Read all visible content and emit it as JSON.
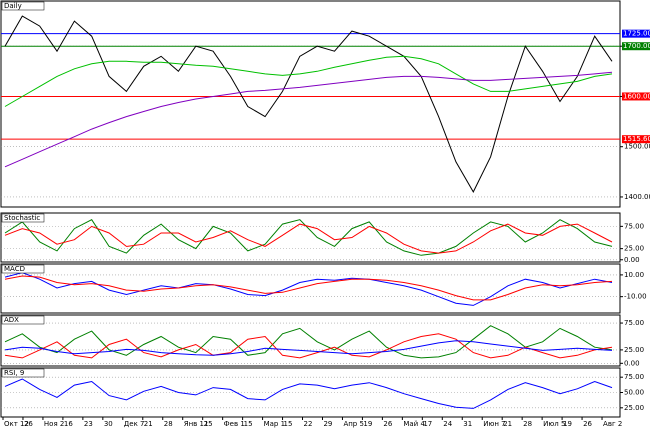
{
  "chart_data": [
    {
      "type": "line",
      "title": "Daily",
      "series": [
        {
          "color": "#000000",
          "values": [
            1700,
            1760,
            1740,
            1690,
            1750,
            1720,
            1640,
            1610,
            1660,
            1680,
            1650,
            1700,
            1690,
            1640,
            1580,
            1560,
            1610,
            1680,
            1700,
            1690,
            1730,
            1720,
            1700,
            1680,
            1640,
            1560,
            1470,
            1410,
            1480,
            1600,
            1700,
            1650,
            1590,
            1640,
            1720,
            1670
          ]
        },
        {
          "color": "#00c000",
          "values": [
            1580,
            1600,
            1620,
            1640,
            1655,
            1665,
            1670,
            1670,
            1668,
            1668,
            1665,
            1662,
            1660,
            1655,
            1650,
            1645,
            1642,
            1645,
            1650,
            1658,
            1665,
            1672,
            1678,
            1680,
            1675,
            1665,
            1645,
            1625,
            1610,
            1610,
            1615,
            1620,
            1625,
            1630,
            1640,
            1645
          ]
        },
        {
          "color": "#8000c0",
          "values": [
            1460,
            1475,
            1490,
            1505,
            1520,
            1535,
            1548,
            1560,
            1570,
            1580,
            1588,
            1595,
            1600,
            1605,
            1610,
            1612,
            1615,
            1618,
            1622,
            1626,
            1630,
            1634,
            1638,
            1640,
            1640,
            1638,
            1635,
            1632,
            1632,
            1634,
            1636,
            1638,
            1640,
            1642,
            1645,
            1648
          ]
        }
      ],
      "ylim": [
        1380,
        1790
      ],
      "yticks": [
        {
          "value": 1400,
          "label": "1400.00"
        },
        {
          "value": 1500,
          "label": "1500.00"
        },
        {
          "value": 1600,
          "label": "1600.00"
        },
        {
          "value": 1700,
          "label": "1700.00"
        }
      ],
      "levels": [
        {
          "value": 1725,
          "label": "1725.00",
          "color": "#0000ff"
        },
        {
          "value": 1700,
          "label": "1700.00",
          "color": "#008000"
        },
        {
          "value": 1600,
          "label": "1600.00",
          "color": "#ff0000"
        },
        {
          "value": 1515,
          "label": "1515.60",
          "color": "#ff0000"
        }
      ],
      "grid": true
    },
    {
      "type": "line",
      "title": "Stochastic",
      "series": [
        {
          "color": "#008000",
          "values": [
            60,
            85,
            40,
            20,
            70,
            90,
            30,
            15,
            55,
            80,
            45,
            25,
            75,
            60,
            20,
            35,
            80,
            90,
            50,
            30,
            70,
            85,
            40,
            20,
            10,
            15,
            30,
            60,
            85,
            75,
            40,
            60,
            90,
            70,
            40,
            30
          ]
        },
        {
          "color": "#ff0000",
          "values": [
            55,
            70,
            60,
            35,
            45,
            75,
            60,
            30,
            35,
            60,
            60,
            40,
            50,
            65,
            45,
            30,
            55,
            80,
            70,
            45,
            50,
            75,
            60,
            35,
            20,
            15,
            20,
            40,
            65,
            80,
            60,
            55,
            75,
            80,
            60,
            40
          ]
        }
      ],
      "ylim": [
        -5,
        105
      ],
      "yticks": [
        {
          "value": 0,
          "label": "0.00"
        },
        {
          "value": 25,
          "label": "25.00"
        },
        {
          "value": 75,
          "label": "75.00"
        }
      ],
      "grid": true
    },
    {
      "type": "line",
      "title": "MACD",
      "series": [
        {
          "color": "#0000ff",
          "values": [
            8,
            12,
            6,
            -2,
            2,
            4,
            -4,
            -8,
            -4,
            0,
            -2,
            2,
            1,
            -3,
            -8,
            -9,
            -4,
            3,
            6,
            5,
            7,
            6,
            3,
            0,
            -4,
            -10,
            -16,
            -18,
            -10,
            0,
            6,
            3,
            -2,
            2,
            6,
            3
          ]
        },
        {
          "color": "#ff0000",
          "values": [
            6,
            9,
            8,
            3,
            1,
            2,
            0,
            -4,
            -5,
            -3,
            -2,
            0,
            1,
            -1,
            -4,
            -7,
            -6,
            -2,
            2,
            4,
            6,
            6,
            5,
            3,
            0,
            -4,
            -9,
            -13,
            -13,
            -8,
            -2,
            1,
            0,
            1,
            3,
            4
          ]
        }
      ],
      "ylim": [
        -25,
        20
      ],
      "yticks": [
        {
          "value": -10,
          "label": "-10.00"
        },
        {
          "value": 10,
          "label": "10.00"
        }
      ],
      "grid": true
    },
    {
      "type": "line",
      "title": "ADX",
      "series": [
        {
          "color": "#008000",
          "values": [
            40,
            55,
            30,
            20,
            45,
            60,
            25,
            15,
            35,
            50,
            30,
            20,
            50,
            45,
            15,
            20,
            55,
            65,
            40,
            25,
            45,
            60,
            30,
            15,
            10,
            12,
            20,
            45,
            70,
            55,
            30,
            40,
            65,
            50,
            30,
            25
          ]
        },
        {
          "color": "#ff0000",
          "values": [
            15,
            10,
            25,
            40,
            15,
            10,
            35,
            45,
            20,
            12,
            25,
            35,
            15,
            20,
            45,
            50,
            15,
            10,
            20,
            30,
            15,
            12,
            25,
            40,
            50,
            55,
            45,
            20,
            10,
            15,
            30,
            20,
            10,
            15,
            25,
            30
          ]
        },
        {
          "color": "#0000ff",
          "values": [
            25,
            30,
            28,
            22,
            18,
            20,
            22,
            26,
            24,
            20,
            18,
            16,
            15,
            18,
            22,
            28,
            26,
            24,
            22,
            20,
            18,
            20,
            22,
            26,
            32,
            38,
            42,
            40,
            36,
            32,
            28,
            24,
            26,
            28,
            26,
            24
          ]
        }
      ],
      "ylim": [
        -5,
        90
      ],
      "yticks": [
        {
          "value": 0,
          "label": "0.00"
        },
        {
          "value": 25,
          "label": "25.00"
        },
        {
          "value": 75,
          "label": "75.00"
        }
      ],
      "grid": true
    },
    {
      "type": "line",
      "title": "RSI, 9",
      "series": [
        {
          "color": "#0000ff",
          "values": [
            60,
            72,
            55,
            42,
            62,
            68,
            45,
            38,
            52,
            60,
            50,
            46,
            58,
            55,
            40,
            38,
            55,
            64,
            62,
            56,
            62,
            66,
            58,
            48,
            40,
            32,
            26,
            24,
            38,
            55,
            66,
            58,
            48,
            56,
            68,
            58
          ]
        }
      ],
      "ylim": [
        10,
        90
      ],
      "yticks": [
        {
          "value": 25,
          "label": "25.00"
        },
        {
          "value": 50,
          "label": "50.00"
        },
        {
          "value": 75,
          "label": "75.00"
        }
      ],
      "grid": true
    }
  ],
  "x_axis_labels": [
    "Окт 12",
    "26",
    "Ноя 2",
    "16",
    "23",
    "30",
    "Дек 7",
    "21",
    "28",
    "Янв 11",
    "25",
    "Фев 1",
    "15",
    "Мар 1",
    "15",
    "22",
    "29",
    "Апр 5",
    "19",
    "26",
    "Май 4",
    "17",
    "24",
    "31",
    "Июн 7",
    "21",
    "28",
    "Июл 5",
    "19",
    "26",
    "Авг 2"
  ]
}
